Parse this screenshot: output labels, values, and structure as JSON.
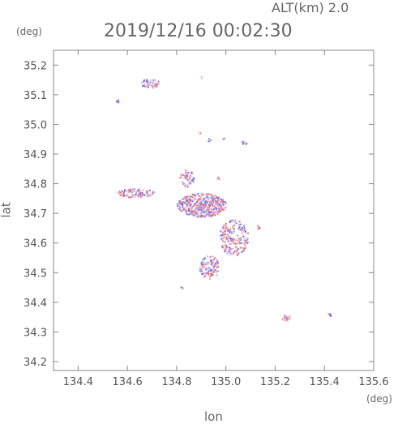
{
  "header": {
    "altitude_label": "ALT(km)  2.0",
    "timestamp": "2019/12/16 00:02:30",
    "y_unit": "(deg)",
    "x_unit": "(deg)"
  },
  "chart_data": {
    "type": "scatter",
    "title": "2019/12/16 00:02:30",
    "xlabel": "lon",
    "ylabel": "lat",
    "xlim": [
      134.3,
      135.6
    ],
    "ylim": [
      34.17,
      35.25
    ],
    "x_ticks": [
      134.4,
      134.6,
      134.8,
      135.0,
      135.2,
      135.4,
      135.6
    ],
    "y_ticks": [
      34.2,
      34.3,
      34.4,
      34.5,
      34.6,
      34.7,
      34.8,
      34.9,
      35.0,
      35.1,
      35.2
    ],
    "grid": false,
    "colors": {
      "positive": "#f07070",
      "negative": "#7070f0",
      "frame": "#888888"
    },
    "clusters": [
      {
        "lon": 134.69,
        "lat": 35.14,
        "rx": 0.04,
        "ry": 0.015,
        "n": 60
      },
      {
        "lon": 134.56,
        "lat": 35.08,
        "rx": 0.01,
        "ry": 0.005,
        "n": 6
      },
      {
        "lon": 134.9,
        "lat": 35.16,
        "rx": 0.005,
        "ry": 0.004,
        "n": 3
      },
      {
        "lon": 134.89,
        "lat": 34.975,
        "rx": 0.006,
        "ry": 0.006,
        "n": 5
      },
      {
        "lon": 134.93,
        "lat": 34.95,
        "rx": 0.008,
        "ry": 0.005,
        "n": 6
      },
      {
        "lon": 135.07,
        "lat": 34.94,
        "rx": 0.015,
        "ry": 0.005,
        "n": 10
      },
      {
        "lon": 134.99,
        "lat": 34.955,
        "rx": 0.005,
        "ry": 0.004,
        "n": 3
      },
      {
        "lon": 134.84,
        "lat": 34.82,
        "rx": 0.03,
        "ry": 0.03,
        "n": 60
      },
      {
        "lon": 134.63,
        "lat": 34.77,
        "rx": 0.08,
        "ry": 0.015,
        "n": 100
      },
      {
        "lon": 134.97,
        "lat": 34.82,
        "rx": 0.008,
        "ry": 0.005,
        "n": 6
      },
      {
        "lon": 134.9,
        "lat": 34.73,
        "rx": 0.1,
        "ry": 0.04,
        "n": 500
      },
      {
        "lon": 135.03,
        "lat": 34.62,
        "rx": 0.06,
        "ry": 0.06,
        "n": 220
      },
      {
        "lon": 134.93,
        "lat": 34.52,
        "rx": 0.04,
        "ry": 0.04,
        "n": 130
      },
      {
        "lon": 135.13,
        "lat": 34.66,
        "rx": 0.008,
        "ry": 0.012,
        "n": 6
      },
      {
        "lon": 134.82,
        "lat": 34.45,
        "rx": 0.01,
        "ry": 0.005,
        "n": 5
      },
      {
        "lon": 135.24,
        "lat": 34.35,
        "rx": 0.02,
        "ry": 0.01,
        "n": 25
      },
      {
        "lon": 135.42,
        "lat": 34.36,
        "rx": 0.006,
        "ry": 0.008,
        "n": 5
      }
    ]
  }
}
